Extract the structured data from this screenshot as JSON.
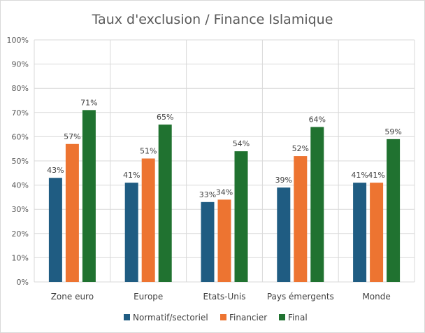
{
  "chart_data": {
    "type": "bar",
    "title": "Taux d'exclusion / Finance Islamique",
    "xlabel": "",
    "ylabel": "",
    "ylim": [
      0,
      100
    ],
    "y_ticks": [
      "0%",
      "10%",
      "20%",
      "30%",
      "40%",
      "50%",
      "60%",
      "70%",
      "80%",
      "90%",
      "100%"
    ],
    "categories": [
      "Zone euro",
      "Europe",
      "Etats-Unis",
      "Pays émergents",
      "Monde"
    ],
    "series": [
      {
        "name": "Normatif/sectoriel",
        "color": "#1f5c82",
        "values": [
          43,
          41,
          33,
          39,
          41
        ],
        "labels": [
          "43%",
          "41%",
          "33%",
          "39%",
          "41%"
        ]
      },
      {
        "name": "Financier",
        "color": "#ed7431",
        "values": [
          57,
          51,
          34,
          52,
          41
        ],
        "labels": [
          "57%",
          "51%",
          "34%",
          "52%",
          "41%"
        ]
      },
      {
        "name": "Final",
        "color": "#207230",
        "values": [
          71,
          65,
          54,
          64,
          59
        ],
        "labels": [
          "71%",
          "65%",
          "54%",
          "64%",
          "59%"
        ]
      }
    ],
    "grid": true,
    "legend_position": "bottom"
  }
}
